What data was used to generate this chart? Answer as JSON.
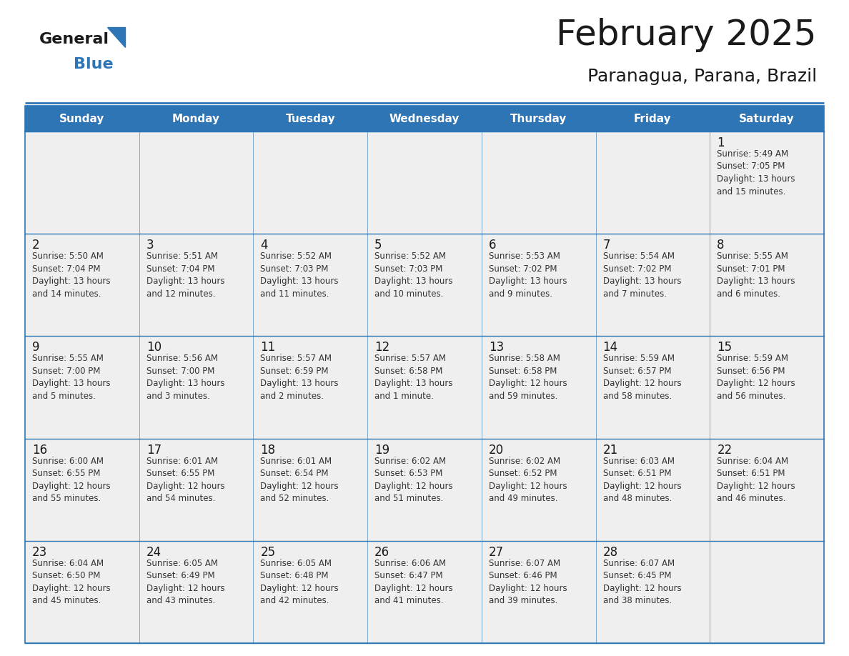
{
  "title": "February 2025",
  "subtitle": "Paranagua, Parana, Brazil",
  "header_bg": "#2E75B6",
  "header_text": "#FFFFFF",
  "cell_bg": "#EFEFEF",
  "day_names": [
    "Sunday",
    "Monday",
    "Tuesday",
    "Wednesday",
    "Thursday",
    "Friday",
    "Saturday"
  ],
  "title_color": "#1A1A1A",
  "subtitle_color": "#1A1A1A",
  "line_color": "#2E75B6",
  "day_number_color": "#1A1A1A",
  "cell_text_color": "#333333",
  "logo_general_color": "#1A1A1A",
  "logo_blue_color": "#2E75B6",
  "logo_triangle_color": "#2E75B6",
  "weeks": [
    [
      {
        "day": null,
        "info": null
      },
      {
        "day": null,
        "info": null
      },
      {
        "day": null,
        "info": null
      },
      {
        "day": null,
        "info": null
      },
      {
        "day": null,
        "info": null
      },
      {
        "day": null,
        "info": null
      },
      {
        "day": 1,
        "info": "Sunrise: 5:49 AM\nSunset: 7:05 PM\nDaylight: 13 hours\nand 15 minutes."
      }
    ],
    [
      {
        "day": 2,
        "info": "Sunrise: 5:50 AM\nSunset: 7:04 PM\nDaylight: 13 hours\nand 14 minutes."
      },
      {
        "day": 3,
        "info": "Sunrise: 5:51 AM\nSunset: 7:04 PM\nDaylight: 13 hours\nand 12 minutes."
      },
      {
        "day": 4,
        "info": "Sunrise: 5:52 AM\nSunset: 7:03 PM\nDaylight: 13 hours\nand 11 minutes."
      },
      {
        "day": 5,
        "info": "Sunrise: 5:52 AM\nSunset: 7:03 PM\nDaylight: 13 hours\nand 10 minutes."
      },
      {
        "day": 6,
        "info": "Sunrise: 5:53 AM\nSunset: 7:02 PM\nDaylight: 13 hours\nand 9 minutes."
      },
      {
        "day": 7,
        "info": "Sunrise: 5:54 AM\nSunset: 7:02 PM\nDaylight: 13 hours\nand 7 minutes."
      },
      {
        "day": 8,
        "info": "Sunrise: 5:55 AM\nSunset: 7:01 PM\nDaylight: 13 hours\nand 6 minutes."
      }
    ],
    [
      {
        "day": 9,
        "info": "Sunrise: 5:55 AM\nSunset: 7:00 PM\nDaylight: 13 hours\nand 5 minutes."
      },
      {
        "day": 10,
        "info": "Sunrise: 5:56 AM\nSunset: 7:00 PM\nDaylight: 13 hours\nand 3 minutes."
      },
      {
        "day": 11,
        "info": "Sunrise: 5:57 AM\nSunset: 6:59 PM\nDaylight: 13 hours\nand 2 minutes."
      },
      {
        "day": 12,
        "info": "Sunrise: 5:57 AM\nSunset: 6:58 PM\nDaylight: 13 hours\nand 1 minute."
      },
      {
        "day": 13,
        "info": "Sunrise: 5:58 AM\nSunset: 6:58 PM\nDaylight: 12 hours\nand 59 minutes."
      },
      {
        "day": 14,
        "info": "Sunrise: 5:59 AM\nSunset: 6:57 PM\nDaylight: 12 hours\nand 58 minutes."
      },
      {
        "day": 15,
        "info": "Sunrise: 5:59 AM\nSunset: 6:56 PM\nDaylight: 12 hours\nand 56 minutes."
      }
    ],
    [
      {
        "day": 16,
        "info": "Sunrise: 6:00 AM\nSunset: 6:55 PM\nDaylight: 12 hours\nand 55 minutes."
      },
      {
        "day": 17,
        "info": "Sunrise: 6:01 AM\nSunset: 6:55 PM\nDaylight: 12 hours\nand 54 minutes."
      },
      {
        "day": 18,
        "info": "Sunrise: 6:01 AM\nSunset: 6:54 PM\nDaylight: 12 hours\nand 52 minutes."
      },
      {
        "day": 19,
        "info": "Sunrise: 6:02 AM\nSunset: 6:53 PM\nDaylight: 12 hours\nand 51 minutes."
      },
      {
        "day": 20,
        "info": "Sunrise: 6:02 AM\nSunset: 6:52 PM\nDaylight: 12 hours\nand 49 minutes."
      },
      {
        "day": 21,
        "info": "Sunrise: 6:03 AM\nSunset: 6:51 PM\nDaylight: 12 hours\nand 48 minutes."
      },
      {
        "day": 22,
        "info": "Sunrise: 6:04 AM\nSunset: 6:51 PM\nDaylight: 12 hours\nand 46 minutes."
      }
    ],
    [
      {
        "day": 23,
        "info": "Sunrise: 6:04 AM\nSunset: 6:50 PM\nDaylight: 12 hours\nand 45 minutes."
      },
      {
        "day": 24,
        "info": "Sunrise: 6:05 AM\nSunset: 6:49 PM\nDaylight: 12 hours\nand 43 minutes."
      },
      {
        "day": 25,
        "info": "Sunrise: 6:05 AM\nSunset: 6:48 PM\nDaylight: 12 hours\nand 42 minutes."
      },
      {
        "day": 26,
        "info": "Sunrise: 6:06 AM\nSunset: 6:47 PM\nDaylight: 12 hours\nand 41 minutes."
      },
      {
        "day": 27,
        "info": "Sunrise: 6:07 AM\nSunset: 6:46 PM\nDaylight: 12 hours\nand 39 minutes."
      },
      {
        "day": 28,
        "info": "Sunrise: 6:07 AM\nSunset: 6:45 PM\nDaylight: 12 hours\nand 38 minutes."
      },
      {
        "day": null,
        "info": null
      }
    ]
  ]
}
